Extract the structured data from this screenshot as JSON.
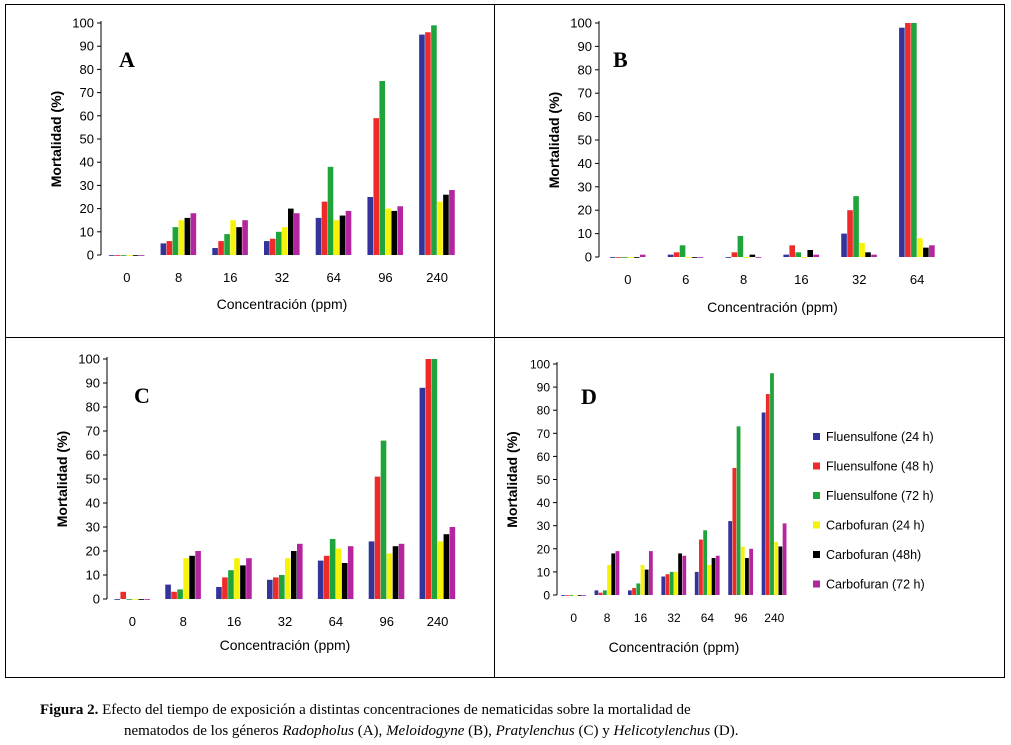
{
  "series_colors": [
    "#33339a",
    "#ee2b2b",
    "#1fa33b",
    "#f6f30a",
    "#000000",
    "#b4259f"
  ],
  "legend": {
    "items": [
      "Fluensulfone (24 h)",
      "Fluensulfone (48 h)",
      "Fluensulfone (72 h)",
      "Carbofuran (24 h)",
      "Carbofuran (48h)",
      "Carbofuran (72 h)"
    ]
  },
  "caption": {
    "label": "Figura 2.",
    "line1": " Efecto del tiempo de exposición a distintas concentraciones de nematicidas sobre la mortalidad de",
    "line2_a": "nematodos de los géneros ",
    "genus1": "Radopholus",
    "line2_b": " (A), ",
    "genus2": "Meloidogyne",
    "line2_c": " (B), ",
    "genus3": "Pratylenchus",
    "line2_d": " (C) y ",
    "genus4": "Helicotylenchus",
    "line2_e": " (D)."
  },
  "chart_data": [
    {
      "type": "bar",
      "panel_letter": "A",
      "xlabel": "Concentración (ppm)",
      "ylabel": "Mortalidad (%)",
      "ylim": [
        0,
        100
      ],
      "yticks": [
        0,
        10,
        20,
        30,
        40,
        50,
        60,
        70,
        80,
        90,
        100
      ],
      "categories": [
        "0",
        "8",
        "16",
        "32",
        "64",
        "96",
        "240"
      ],
      "series": [
        {
          "name": "Fluensulfone (24 h)",
          "values": [
            0,
            5,
            3,
            6,
            16,
            25,
            95
          ]
        },
        {
          "name": "Fluensulfone (48 h)",
          "values": [
            0,
            6,
            6,
            7,
            23,
            59,
            96
          ]
        },
        {
          "name": "Fluensulfone (72 h)",
          "values": [
            0,
            12,
            9,
            10,
            38,
            75,
            99
          ]
        },
        {
          "name": "Carbofuran (24 h)",
          "values": [
            0,
            15,
            15,
            12,
            15,
            20,
            23
          ]
        },
        {
          "name": "Carbofuran (48h)",
          "values": [
            0,
            16,
            12,
            20,
            17,
            19,
            26
          ]
        },
        {
          "name": "Carbofuran (72 h)",
          "values": [
            0,
            18,
            15,
            18,
            19,
            21,
            28
          ]
        }
      ]
    },
    {
      "type": "bar",
      "panel_letter": "B",
      "xlabel": "Concentración (ppm)",
      "ylabel": "Mortalidad (%)",
      "ylim": [
        0,
        100
      ],
      "yticks": [
        0,
        10,
        20,
        30,
        40,
        50,
        60,
        70,
        80,
        90,
        100
      ],
      "categories": [
        "0",
        "6",
        "8",
        "16",
        "32",
        "64"
      ],
      "series": [
        {
          "name": "Fluensulfone (24 h)",
          "values": [
            0,
            1,
            0,
            1,
            10,
            98
          ]
        },
        {
          "name": "Fluensulfone (48 h)",
          "values": [
            0,
            2,
            2,
            5,
            20,
            100
          ]
        },
        {
          "name": "Fluensulfone (72 h)",
          "values": [
            0,
            5,
            9,
            2,
            26,
            100
          ]
        },
        {
          "name": "Carbofuran (24 h)",
          "values": [
            0,
            0,
            0,
            0,
            6,
            8
          ]
        },
        {
          "name": "Carbofuran (48h)",
          "values": [
            0,
            0,
            1,
            3,
            2,
            4
          ]
        },
        {
          "name": "Carbofuran (72 h)",
          "values": [
            1,
            0,
            0,
            1,
            1,
            5
          ]
        }
      ]
    },
    {
      "type": "bar",
      "panel_letter": "C",
      "xlabel": "Concentración (ppm)",
      "ylabel": "Mortalidad (%)",
      "ylim": [
        0,
        100
      ],
      "yticks": [
        0,
        10,
        20,
        30,
        40,
        50,
        60,
        70,
        80,
        90,
        100
      ],
      "categories": [
        "0",
        "8",
        "16",
        "32",
        "64",
        "96",
        "240"
      ],
      "series": [
        {
          "name": "Fluensulfone (24 h)",
          "values": [
            0,
            6,
            5,
            8,
            16,
            24,
            88
          ]
        },
        {
          "name": "Fluensulfone (48 h)",
          "values": [
            3,
            3,
            9,
            9,
            18,
            51,
            100
          ]
        },
        {
          "name": "Fluensulfone (72 h)",
          "values": [
            0,
            4,
            12,
            10,
            25,
            66,
            100
          ]
        },
        {
          "name": "Carbofuran (24 h)",
          "values": [
            0,
            17,
            17,
            17,
            21,
            19,
            24
          ]
        },
        {
          "name": "Carbofuran (48h)",
          "values": [
            0,
            18,
            14,
            20,
            15,
            22,
            27
          ]
        },
        {
          "name": "Carbofuran (72 h)",
          "values": [
            0,
            20,
            17,
            23,
            22,
            23,
            30
          ]
        }
      ]
    },
    {
      "type": "bar",
      "panel_letter": "D",
      "xlabel": "Concentración (ppm)",
      "ylabel": "Mortalidad (%)",
      "ylim": [
        0,
        100
      ],
      "yticks": [
        0,
        10,
        20,
        30,
        40,
        50,
        60,
        70,
        80,
        90,
        100
      ],
      "categories": [
        "0",
        "8",
        "16",
        "32",
        "64",
        "96",
        "240"
      ],
      "series": [
        {
          "name": "Fluensulfone (24 h)",
          "values": [
            0,
            2,
            2,
            8,
            10,
            32,
            79
          ]
        },
        {
          "name": "Fluensulfone (48 h)",
          "values": [
            0,
            1,
            3,
            9,
            24,
            55,
            87
          ]
        },
        {
          "name": "Fluensulfone (72 h)",
          "values": [
            0,
            2,
            5,
            10,
            28,
            73,
            96
          ]
        },
        {
          "name": "Carbofuran (24 h)",
          "values": [
            0,
            13,
            13,
            10,
            13,
            21,
            23
          ]
        },
        {
          "name": "Carbofuran (48h)",
          "values": [
            0,
            18,
            11,
            18,
            16,
            16,
            21
          ]
        },
        {
          "name": "Carbofuran (72 h)",
          "values": [
            0,
            19,
            19,
            17,
            17,
            20,
            31
          ]
        }
      ],
      "legend_position": "right"
    }
  ]
}
